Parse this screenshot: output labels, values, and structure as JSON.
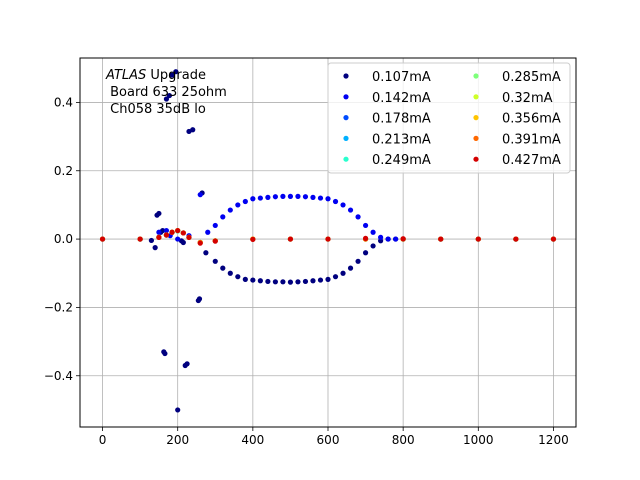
{
  "chart_data": {
    "type": "scatter",
    "title": "",
    "xlabel": "",
    "ylabel": "",
    "xlim": [
      -60,
      1260
    ],
    "ylim": [
      -0.55,
      0.53
    ],
    "xticks": [
      0,
      200,
      400,
      600,
      800,
      1000,
      1200
    ],
    "yticks": [
      -0.4,
      -0.2,
      0.0,
      0.2,
      0.4
    ],
    "xtick_labels": [
      "0",
      "200",
      "400",
      "600",
      "800",
      "1000",
      "1200"
    ],
    "ytick_labels": [
      "−0.4",
      "−0.2",
      "0.0",
      "0.2",
      "0.4"
    ],
    "grid": true,
    "legend_position": "top-right",
    "legend_columns": 2,
    "annotation": {
      "italic": "ATLAS",
      "line1_rest": " Upgrade",
      "line2": " Board 633 25ohm",
      "line3": " Ch058 35dB lo"
    },
    "series": [
      {
        "name": "0.107mA",
        "color": "#00007f",
        "x": [
          0,
          100,
          130,
          140,
          145,
          150,
          155,
          160,
          163,
          166,
          170,
          178,
          185,
          195,
          200,
          210,
          215,
          220,
          225,
          230,
          240,
          255,
          258,
          265,
          275,
          300,
          320,
          340,
          360,
          380,
          400,
          420,
          440,
          460,
          480,
          500,
          520,
          540,
          560,
          580,
          600,
          620,
          640,
          660,
          680,
          700,
          720,
          740,
          760,
          780,
          800,
          900,
          1000,
          1100,
          1200
        ],
        "y": [
          0,
          0,
          -0.004,
          -0.025,
          0.07,
          0.075,
          0.02,
          0.025,
          -0.33,
          -0.335,
          0.41,
          0.42,
          0.48,
          0.49,
          -0.5,
          -0.005,
          -0.01,
          -0.37,
          -0.365,
          0.315,
          0.32,
          -0.18,
          -0.175,
          0.135,
          -0.04,
          -0.065,
          -0.085,
          -0.1,
          -0.11,
          -0.118,
          -0.12,
          -0.122,
          -0.124,
          -0.125,
          -0.125,
          -0.126,
          -0.125,
          -0.124,
          -0.122,
          -0.12,
          -0.118,
          -0.11,
          -0.1,
          -0.085,
          -0.065,
          -0.04,
          -0.02,
          -0.005,
          0,
          0,
          0,
          0,
          0,
          0,
          0
        ]
      },
      {
        "name": "0.142mA",
        "color": "#0000f1",
        "x": [
          0,
          100,
          150,
          170,
          180,
          200,
          230,
          260,
          280,
          300,
          320,
          340,
          360,
          380,
          400,
          420,
          440,
          460,
          480,
          500,
          520,
          540,
          560,
          580,
          600,
          620,
          640,
          660,
          680,
          700,
          720,
          740,
          760,
          780,
          800,
          900,
          1000,
          1100,
          1200
        ],
        "y": [
          0,
          0,
          0.02,
          0.025,
          0.01,
          0.0,
          0.01,
          0.13,
          0.02,
          0.04,
          0.065,
          0.085,
          0.1,
          0.11,
          0.118,
          0.12,
          0.122,
          0.124,
          0.125,
          0.125,
          0.125,
          0.124,
          0.122,
          0.12,
          0.118,
          0.11,
          0.1,
          0.085,
          0.065,
          0.04,
          0.02,
          0.005,
          0,
          0,
          0,
          0,
          0,
          0,
          0
        ]
      },
      {
        "name": "0.178mA",
        "color": "#004cff",
        "x": [
          0,
          100,
          150,
          170,
          185,
          200,
          215,
          230,
          260,
          300,
          400,
          500,
          600,
          700,
          800,
          900,
          1000,
          1100,
          1200
        ],
        "y": [
          0,
          0,
          0.005,
          0.012,
          0.02,
          0.024,
          0.018,
          0.005,
          -0.01,
          -0.005,
          0,
          0,
          0,
          0,
          0,
          0,
          0,
          0,
          0
        ]
      },
      {
        "name": "0.213mA",
        "color": "#00b0ff",
        "x": [
          0,
          100,
          150,
          170,
          185,
          200,
          215,
          230,
          260,
          300,
          400,
          500,
          600,
          700,
          800,
          900,
          1000,
          1100,
          1200
        ],
        "y": [
          0,
          0,
          0.005,
          0.012,
          0.02,
          0.024,
          0.018,
          0.005,
          -0.01,
          -0.005,
          0,
          0,
          0,
          0,
          0,
          0,
          0,
          0,
          0
        ]
      },
      {
        "name": "0.249mA",
        "color": "#29ffce",
        "x": [
          0,
          100,
          150,
          170,
          185,
          200,
          215,
          230,
          260,
          300,
          400,
          500,
          600,
          700,
          800,
          900,
          1000,
          1100,
          1200
        ],
        "y": [
          0,
          0,
          0.005,
          0.012,
          0.02,
          0.024,
          0.018,
          0.005,
          -0.01,
          -0.005,
          0,
          0,
          0,
          0,
          0,
          0,
          0,
          0,
          0
        ]
      },
      {
        "name": "0.285mA",
        "color": "#7dff7a",
        "x": [
          0,
          100,
          150,
          170,
          185,
          200,
          215,
          230,
          260,
          300,
          400,
          500,
          600,
          700,
          800,
          900,
          1000,
          1100,
          1200
        ],
        "y": [
          0,
          0,
          0.005,
          0.012,
          0.02,
          0.025,
          0.018,
          0.005,
          -0.01,
          -0.005,
          0,
          0,
          0,
          0,
          0,
          0,
          0,
          0,
          0
        ]
      },
      {
        "name": "0.32mA",
        "color": "#ceff29",
        "x": [
          0,
          100,
          150,
          170,
          185,
          200,
          215,
          230,
          260,
          300,
          400,
          500,
          600,
          700,
          800,
          900,
          1000,
          1100,
          1200
        ],
        "y": [
          0,
          0,
          0.005,
          0.012,
          0.02,
          0.025,
          0.018,
          0.005,
          -0.01,
          -0.005,
          0,
          0,
          0,
          0,
          0,
          0,
          0,
          0,
          0
        ]
      },
      {
        "name": "0.356mA",
        "color": "#ffc400",
        "x": [
          0,
          100,
          150,
          170,
          185,
          200,
          215,
          230,
          260,
          300,
          400,
          500,
          600,
          700,
          800,
          900,
          1000,
          1100,
          1200
        ],
        "y": [
          0,
          0,
          0.005,
          0.012,
          0.02,
          0.025,
          0.018,
          0.005,
          -0.01,
          -0.005,
          0,
          0,
          0,
          0,
          0,
          0,
          0,
          0,
          0
        ]
      },
      {
        "name": "0.391mA",
        "color": "#ff6800",
        "x": [
          0,
          100,
          150,
          170,
          185,
          200,
          215,
          230,
          260,
          300,
          400,
          500,
          600,
          700,
          800,
          900,
          1000,
          1100,
          1200
        ],
        "y": [
          0,
          0,
          0.005,
          0.012,
          0.02,
          0.025,
          0.018,
          0.005,
          -0.01,
          -0.005,
          0,
          0,
          0,
          0,
          0,
          0,
          0,
          0,
          0
        ]
      },
      {
        "name": "0.427mA",
        "color": "#d40000",
        "x": [
          0,
          100,
          150,
          170,
          185,
          200,
          215,
          230,
          260,
          300,
          400,
          500,
          600,
          700,
          800,
          900,
          1000,
          1100,
          1200
        ],
        "y": [
          0,
          0,
          0.005,
          0.012,
          0.02,
          0.025,
          0.018,
          0.005,
          -0.012,
          -0.006,
          -0.001,
          0,
          0,
          0.002,
          0.001,
          0,
          0,
          0,
          0
        ]
      }
    ]
  }
}
